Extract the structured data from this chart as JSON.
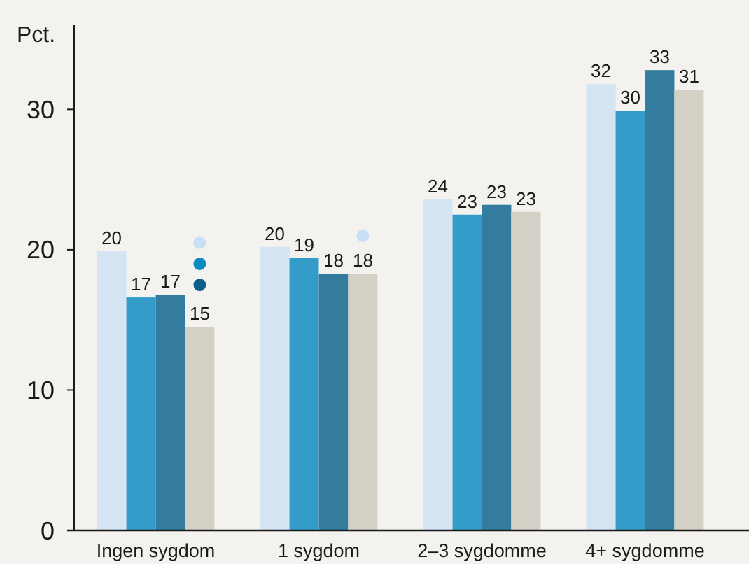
{
  "chart_data": {
    "type": "bar",
    "ylabel": "Pct.",
    "categories": [
      "Ingen sygdom",
      "1 sygdom",
      "2–3 sygdomme",
      "4+ sygdomme"
    ],
    "ylim": [
      0,
      36
    ],
    "yticks": [
      0,
      10,
      20,
      30
    ],
    "grid": false,
    "series": [
      {
        "color": "#d5e4f3",
        "values": [
          19.9,
          20.2,
          23.6,
          31.8
        ],
        "value_labels": [
          "20",
          "20",
          "24",
          "32"
        ]
      },
      {
        "color": "#339cc8",
        "values": [
          16.6,
          19.4,
          22.5,
          29.9
        ],
        "value_labels": [
          "17",
          "19",
          "23",
          "30"
        ]
      },
      {
        "color": "#337c9e",
        "values": [
          16.8,
          18.3,
          23.2,
          32.8
        ],
        "value_labels": [
          "17",
          "18",
          "23",
          "33"
        ]
      },
      {
        "color": "#d4d0c5",
        "values": [
          14.5,
          18.3,
          22.7,
          31.4
        ],
        "value_labels": [
          "15",
          "18",
          "23",
          "31"
        ]
      },
      {
        "type": "scatter",
        "marker": "circle",
        "color": "#c9e0f4",
        "x": [
          "Ingen sygdom",
          "1 sygdom"
        ],
        "values": [
          20.5,
          21.0
        ]
      },
      {
        "type": "scatter",
        "marker": "circle",
        "color": "#0a8cc0",
        "x": [
          "Ingen sygdom"
        ],
        "values": [
          19.0
        ]
      },
      {
        "type": "scatter",
        "marker": "circle",
        "color": "#0c5f88",
        "x": [
          "Ingen sygdom"
        ],
        "values": [
          17.5
        ]
      }
    ]
  }
}
